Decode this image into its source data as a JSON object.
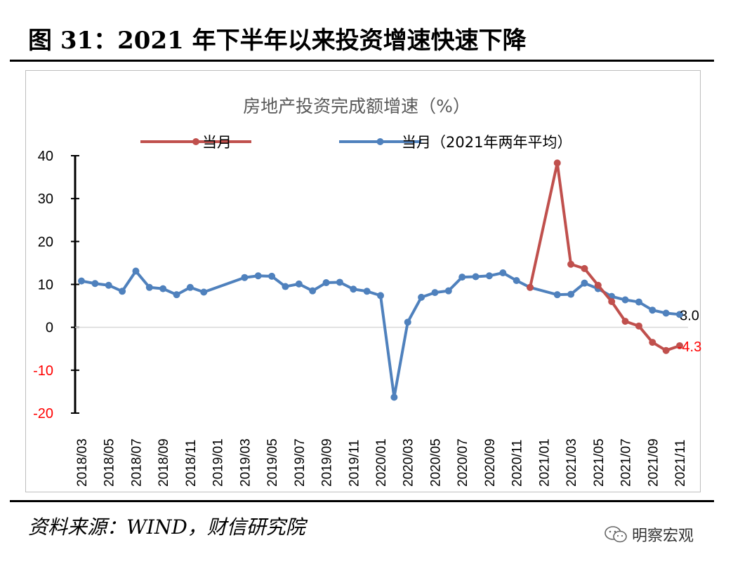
{
  "figure": {
    "title": "图 31：2021 年下半年以来投资增速快速下降",
    "source": "资料来源：WIND，财信研究院",
    "watermark": "明察宏观",
    "watermark_icon": "wechat-icon"
  },
  "chart_data": {
    "type": "line",
    "title": "房地产投资完成额增速（%）",
    "xlabel": "",
    "ylabel": "",
    "ylim": [
      -20,
      40
    ],
    "yticks": [
      "40",
      "30",
      "20",
      "10",
      "0",
      "-10",
      "-20"
    ],
    "grid": false,
    "legend_position": "top",
    "x": [
      "2018/03",
      "2018/04",
      "2018/05",
      "2018/06",
      "2018/07",
      "2018/08",
      "2018/09",
      "2018/10",
      "2018/11",
      "2018/12",
      "2019/01",
      "2019/02",
      "2019/03",
      "2019/04",
      "2019/05",
      "2019/06",
      "2019/07",
      "2019/08",
      "2019/09",
      "2019/10",
      "2019/11",
      "2019/12",
      "2020/01",
      "2020/02",
      "2020/03",
      "2020/04",
      "2020/05",
      "2020/06",
      "2020/07",
      "2020/08",
      "2020/09",
      "2020/10",
      "2020/11",
      "2020/12",
      "2021/01",
      "2021/02",
      "2021/03",
      "2021/04",
      "2021/05",
      "2021/06",
      "2021/07",
      "2021/08",
      "2021/09",
      "2021/10",
      "2021/11"
    ],
    "xticks": [
      "2018/03",
      "2018/05",
      "2018/07",
      "2018/09",
      "2018/11",
      "2019/01",
      "2019/03",
      "2019/05",
      "2019/07",
      "2019/09",
      "2019/11",
      "2020/01",
      "2020/03",
      "2020/05",
      "2020/07",
      "2020/09",
      "2020/11",
      "2021/01",
      "2021/03",
      "2021/05",
      "2021/07",
      "2021/09",
      "2021/11"
    ],
    "series": [
      {
        "name": "当月（2021年两年平均）",
        "color": "#4f81bd",
        "points": [
          [
            "2018/03",
            10.8
          ],
          [
            "2018/04",
            10.2
          ],
          [
            "2018/05",
            9.8
          ],
          [
            "2018/06",
            8.4
          ],
          [
            "2018/07",
            13.1
          ],
          [
            "2018/08",
            9.3
          ],
          [
            "2018/09",
            9.0
          ],
          [
            "2018/10",
            7.6
          ],
          [
            "2018/11",
            9.3
          ],
          [
            "2018/12",
            8.2
          ],
          [
            "2019/03",
            11.6
          ],
          [
            "2019/04",
            12.0
          ],
          [
            "2019/05",
            11.9
          ],
          [
            "2019/06",
            9.5
          ],
          [
            "2019/07",
            10.1
          ],
          [
            "2019/08",
            8.5
          ],
          [
            "2019/09",
            10.4
          ],
          [
            "2019/10",
            10.5
          ],
          [
            "2019/11",
            8.9
          ],
          [
            "2019/12",
            8.4
          ],
          [
            "2020/01",
            7.4
          ],
          [
            "2020/02",
            -16.3
          ],
          [
            "2020/03",
            1.2
          ],
          [
            "2020/04",
            7.0
          ],
          [
            "2020/05",
            8.1
          ],
          [
            "2020/06",
            8.5
          ],
          [
            "2020/07",
            11.7
          ],
          [
            "2020/08",
            11.8
          ],
          [
            "2020/09",
            12.0
          ],
          [
            "2020/10",
            12.7
          ],
          [
            "2020/11",
            10.9
          ],
          [
            "2020/12",
            9.3
          ],
          [
            "2021/02",
            7.6
          ],
          [
            "2021/03",
            7.7
          ],
          [
            "2021/04",
            10.3
          ],
          [
            "2021/05",
            9.0
          ],
          [
            "2021/06",
            7.2
          ],
          [
            "2021/07",
            6.4
          ],
          [
            "2021/08",
            5.9
          ],
          [
            "2021/09",
            4.0
          ],
          [
            "2021/10",
            3.3
          ],
          [
            "2021/11",
            3.0
          ]
        ],
        "end_label": "3.0",
        "end_label_color": "#000000"
      },
      {
        "name": "当月",
        "color": "#c0504d",
        "points": [
          [
            "2020/12",
            9.3
          ],
          [
            "2021/02",
            38.3
          ],
          [
            "2021/03",
            14.7
          ],
          [
            "2021/04",
            13.7
          ],
          [
            "2021/05",
            9.8
          ],
          [
            "2021/06",
            6.0
          ],
          [
            "2021/07",
            1.4
          ],
          [
            "2021/08",
            0.3
          ],
          [
            "2021/09",
            -3.5
          ],
          [
            "2021/10",
            -5.4
          ],
          [
            "2021/11",
            -4.3
          ]
        ],
        "end_label": "-4.3",
        "end_label_color": "#ff0000"
      }
    ],
    "legend": [
      {
        "label": "当月",
        "color": "#c0504d"
      },
      {
        "label": "当月（2021年两年平均）",
        "color": "#4f81bd"
      }
    ]
  }
}
